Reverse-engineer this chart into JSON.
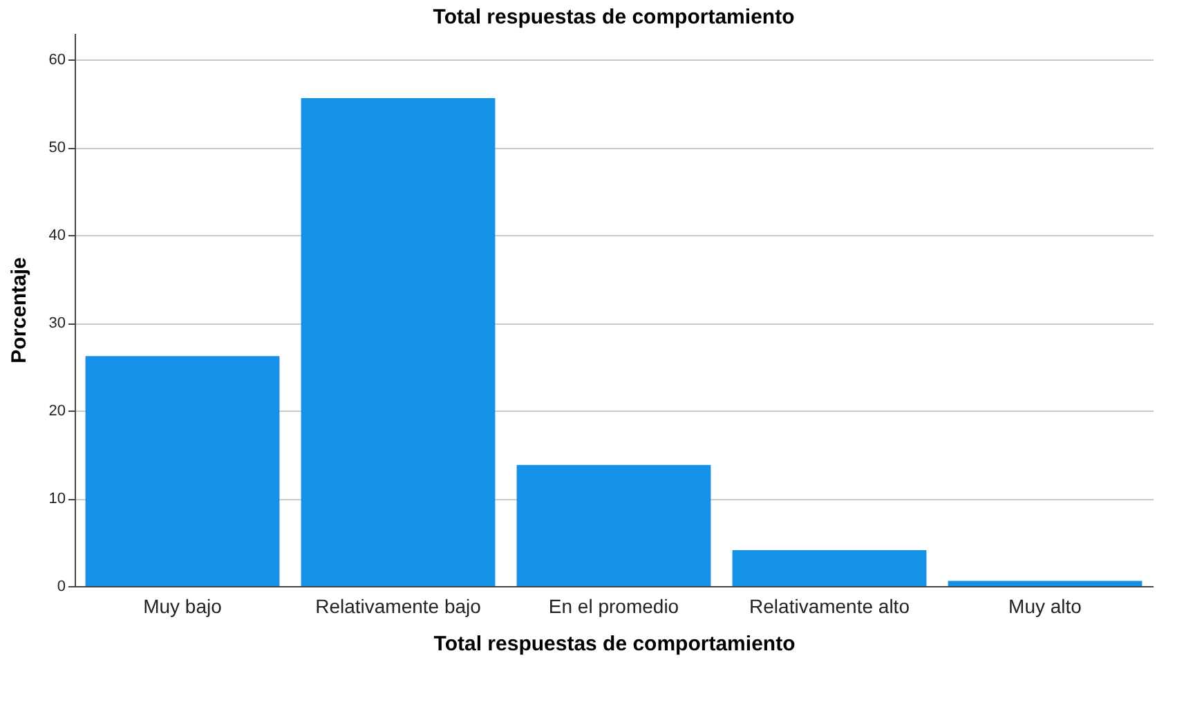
{
  "chart_data": {
    "type": "bar",
    "title": "Total respuestas de comportamiento",
    "xlabel": "Total respuestas de comportamiento",
    "ylabel": "Porcentaje",
    "categories": [
      "Muy bajo",
      "Relativamente bajo",
      "En el promedio",
      "Relativamente alto",
      "Muy alto"
    ],
    "values": [
      26.2,
      55.6,
      13.8,
      4.1,
      0.6
    ],
    "color": "#1591e8",
    "ylim": [
      0,
      63
    ],
    "yticks": [
      0,
      10,
      20,
      30,
      40,
      50,
      60
    ],
    "grid": "y"
  }
}
